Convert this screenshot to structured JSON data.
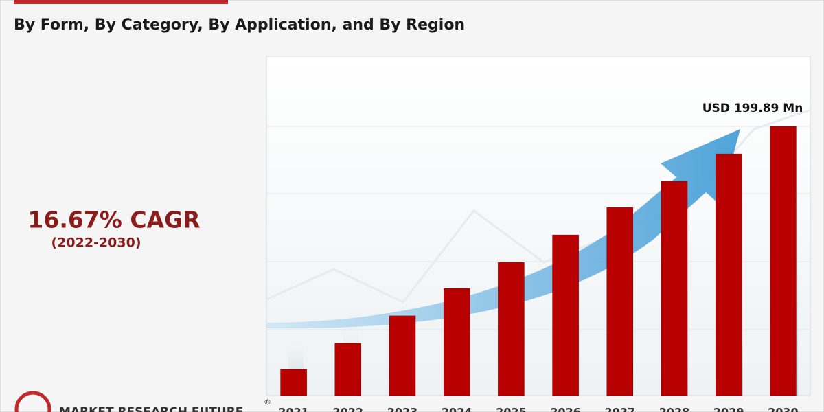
{
  "chart_data": {
    "type": "bar",
    "subtitle": "By Form, By Category, By Application, and By Region",
    "cagr": "16.67% CAGR",
    "cagr_period": "(2022-2030)",
    "brand": "MARKET RESEARCH FUTURE",
    "brand_mark": "®",
    "categories": [
      "2021",
      "2022",
      "2023",
      "2024",
      "2025",
      "2026",
      "2027",
      "2028",
      "2029",
      "2030"
    ],
    "values": [
      19.4,
      38.8,
      59.2,
      79.5,
      98.9,
      119.3,
      139.7,
      159.1,
      179.5,
      199.89
    ],
    "value_labels": [
      null,
      null,
      null,
      null,
      null,
      null,
      null,
      null,
      null,
      "USD 199.89 Mn"
    ],
    "color": "#b80000",
    "ylim": [
      0,
      252
    ]
  }
}
